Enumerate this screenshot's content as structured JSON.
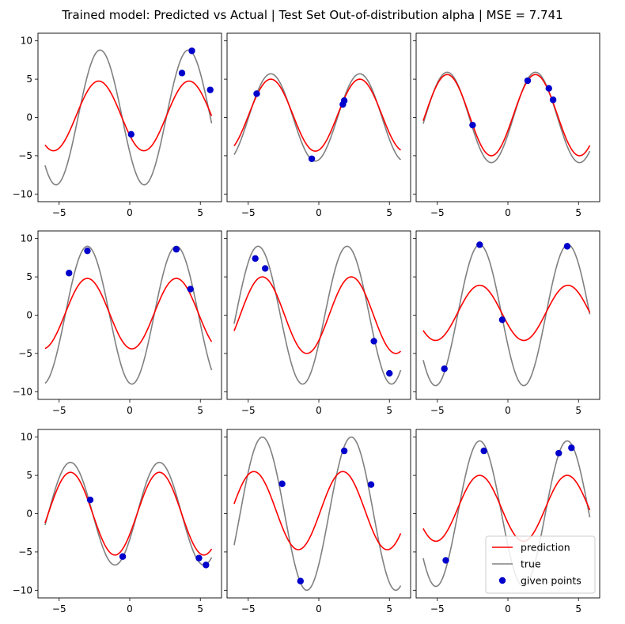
{
  "chart_data": {
    "type": "line",
    "title": "Trained model: Predicted vs Actual | Test Set Out-of-distribution alpha | MSE = 7.741",
    "xlim": [
      -6.5,
      6.5
    ],
    "ylim": [
      -11,
      11
    ],
    "xticks": [
      -5,
      0,
      5
    ],
    "yticks": [
      -10,
      -5,
      0,
      5,
      10
    ],
    "grid": false,
    "legend_location": "lower right",
    "legend": {
      "prediction": "prediction",
      "true": "true",
      "given": "given points"
    },
    "colors": {
      "prediction": "#ff0000",
      "true": "#808080",
      "given": "#0000cc"
    },
    "panels": [
      {
        "true": {
          "amp": 8.8,
          "period": 6.25,
          "peak": -2.1
        },
        "prediction": {
          "amp": 4.55,
          "period": 6.4,
          "peak": -2.2,
          "offset": 0.2
        },
        "given_points": [
          [
            0.1,
            -2.2
          ],
          [
            3.7,
            5.8
          ],
          [
            4.4,
            8.7
          ],
          [
            5.7,
            3.6
          ]
        ]
      },
      {
        "true": {
          "amp": 5.7,
          "period": 6.3,
          "peak": -3.4
        },
        "prediction": {
          "amp": 4.7,
          "period": 6.3,
          "peak": -3.4,
          "offset": 0.3
        },
        "given_points": [
          [
            -4.4,
            3.1
          ],
          [
            -0.5,
            -5.4
          ],
          [
            1.7,
            1.7
          ],
          [
            1.8,
            2.2
          ]
        ]
      },
      {
        "true": {
          "amp": 5.9,
          "period": 6.25,
          "peak": -4.3
        },
        "prediction": {
          "amp": 5.3,
          "period": 6.25,
          "peak": -4.3,
          "offset": 0.3
        },
        "given_points": [
          [
            -2.5,
            -1.0
          ],
          [
            1.4,
            4.8
          ],
          [
            2.9,
            3.8
          ],
          [
            3.2,
            2.3
          ]
        ]
      },
      {
        "true": {
          "amp": 9.0,
          "period": 6.3,
          "peak": -3.0
        },
        "prediction": {
          "amp": 4.6,
          "period": 6.3,
          "peak": -3.0,
          "offset": 0.2
        },
        "given_points": [
          [
            -4.3,
            5.5
          ],
          [
            -3.0,
            8.4
          ],
          [
            3.3,
            8.6
          ],
          [
            4.3,
            3.4
          ]
        ]
      },
      {
        "true": {
          "amp": 9.0,
          "period": 6.3,
          "peak": -4.3
        },
        "prediction": {
          "amp": 5.0,
          "period": 6.3,
          "peak": -4.0,
          "offset": 0.0
        },
        "given_points": [
          [
            -4.5,
            7.4
          ],
          [
            -3.8,
            6.1
          ],
          [
            3.9,
            -3.4
          ],
          [
            5.0,
            -7.6
          ]
        ]
      },
      {
        "true": {
          "amp": 9.2,
          "period": 6.25,
          "peak": -2.0
        },
        "prediction": {
          "amp": 3.6,
          "period": 6.25,
          "peak": -2.0,
          "offset": 0.3
        },
        "given_points": [
          [
            -4.5,
            -7.0
          ],
          [
            -2.0,
            9.2
          ],
          [
            -0.4,
            -0.6
          ],
          [
            4.2,
            9.0
          ]
        ]
      },
      {
        "true": {
          "amp": 6.7,
          "period": 6.3,
          "peak": -4.2
        },
        "prediction": {
          "amp": 5.4,
          "period": 6.3,
          "peak": -4.2,
          "offset": 0.0
        },
        "given_points": [
          [
            -2.8,
            1.8
          ],
          [
            -0.5,
            -5.6
          ],
          [
            4.9,
            -5.8
          ],
          [
            5.4,
            -6.7
          ]
        ]
      },
      {
        "true": {
          "amp": 10.0,
          "period": 6.3,
          "peak": -4.0
        },
        "prediction": {
          "amp": 5.1,
          "period": 6.3,
          "peak": -4.6,
          "offset": 0.4
        },
        "given_points": [
          [
            -2.6,
            3.9
          ],
          [
            -1.3,
            -8.8
          ],
          [
            1.8,
            8.2
          ],
          [
            3.7,
            3.8
          ]
        ]
      },
      {
        "true": {
          "amp": 9.5,
          "period": 6.2,
          "peak": -2.0
        },
        "prediction": {
          "amp": 4.3,
          "period": 6.2,
          "peak": -2.0,
          "offset": 0.7
        },
        "given_points": [
          [
            -4.4,
            -6.1
          ],
          [
            -1.7,
            8.2
          ],
          [
            3.6,
            7.9
          ],
          [
            4.5,
            8.6
          ]
        ]
      }
    ]
  }
}
